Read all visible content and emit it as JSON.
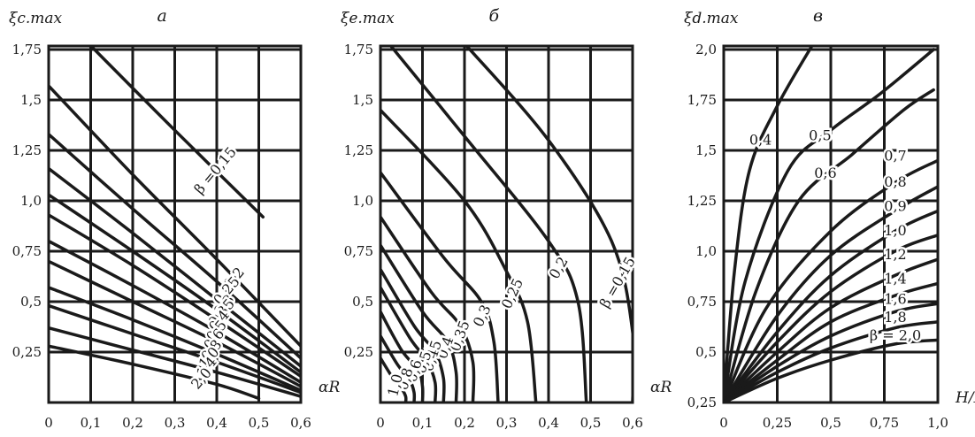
{
  "chart_data": [
    {
      "type": "line",
      "panel_letter": "а",
      "ylabel": "ξc.max",
      "xlabel": "αR",
      "xlim": [
        0,
        0.6
      ],
      "ylim": [
        0,
        1.75
      ],
      "xticks": [
        "0",
        "0,1",
        "0,2",
        "0,3",
        "0,4",
        "0,5",
        "0,6"
      ],
      "yticks": [
        "0,25",
        "0,5",
        "0,75",
        "1,0",
        "1,25",
        "1,5",
        "1,75"
      ],
      "grid": true,
      "series": [
        {
          "label": "β =0,15",
          "x": [
            0.09,
            0.3,
            0.51
          ],
          "y": [
            1.79,
            1.35,
            0.92
          ]
        },
        {
          "label": "0,2",
          "x": [
            0.0,
            0.2,
            0.4,
            0.6
          ],
          "y": [
            1.57,
            1.13,
            0.71,
            0.28
          ]
        },
        {
          "label": "0,25",
          "x": [
            0.0,
            0.2,
            0.4,
            0.6
          ],
          "y": [
            1.33,
            0.96,
            0.6,
            0.22
          ]
        },
        {
          "label": "0,3",
          "x": [
            0.0,
            0.2,
            0.4,
            0.6
          ],
          "y": [
            1.16,
            0.84,
            0.51,
            0.18
          ]
        },
        {
          "label": "0,35",
          "x": [
            0.0,
            0.2,
            0.4,
            0.6
          ],
          "y": [
            1.03,
            0.75,
            0.46,
            0.15
          ]
        },
        {
          "label": "0,4",
          "x": [
            0.0,
            0.2,
            0.4,
            0.6
          ],
          "y": [
            0.93,
            0.68,
            0.41,
            0.13
          ]
        },
        {
          "label": "0,5",
          "x": [
            0.0,
            0.2,
            0.4,
            0.6
          ],
          "y": [
            0.8,
            0.58,
            0.35,
            0.1
          ]
        },
        {
          "label": "0,6",
          "x": [
            0.0,
            0.2,
            0.4,
            0.6
          ],
          "y": [
            0.7,
            0.5,
            0.3,
            0.08
          ]
        },
        {
          "label": "0,8",
          "x": [
            0.0,
            0.2,
            0.4,
            0.6
          ],
          "y": [
            0.57,
            0.41,
            0.24,
            0.06
          ]
        },
        {
          "label": "1,0",
          "x": [
            0.0,
            0.2,
            0.4,
            0.6
          ],
          "y": [
            0.48,
            0.34,
            0.2,
            0.05
          ]
        },
        {
          "label": "1,4",
          "x": [
            0.0,
            0.2,
            0.4,
            0.6
          ],
          "y": [
            0.37,
            0.26,
            0.15,
            0.03
          ]
        },
        {
          "label": "2,0",
          "x": [
            0.0,
            0.2,
            0.4,
            0.5
          ],
          "y": [
            0.28,
            0.19,
            0.09,
            0.02
          ]
        }
      ]
    },
    {
      "type": "line",
      "panel_letter": "б",
      "ylabel": "ξe.max",
      "xlabel": "αR",
      "xlim": [
        0,
        0.6
      ],
      "ylim": [
        0,
        1.75
      ],
      "xticks": [
        "0",
        "0,1",
        "0,2",
        "0,3",
        "0,4",
        "0,5",
        "0,6"
      ],
      "yticks": [
        "0,25",
        "0,5",
        "0,75",
        "1,0",
        "1,25",
        "1,5",
        "1,75"
      ],
      "grid": true,
      "series": [
        {
          "label": "β =0,15",
          "x": [
            0.2,
            0.4,
            0.55,
            0.6,
            0.6
          ],
          "y": [
            1.78,
            1.3,
            0.8,
            0.35,
            0.0
          ]
        },
        {
          "label": "0,2",
          "x": [
            0.02,
            0.2,
            0.4,
            0.47,
            0.49
          ],
          "y": [
            1.78,
            1.32,
            0.8,
            0.5,
            0.0
          ]
        },
        {
          "label": "0,25",
          "x": [
            0.0,
            0.2,
            0.3,
            0.35,
            0.37
          ],
          "y": [
            1.45,
            1.0,
            0.65,
            0.4,
            0.0
          ]
        },
        {
          "label": "0,3",
          "x": [
            0.0,
            0.15,
            0.24,
            0.27,
            0.28
          ],
          "y": [
            1.14,
            0.72,
            0.5,
            0.3,
            0.0
          ]
        },
        {
          "label": "0,35",
          "x": [
            0.0,
            0.12,
            0.19,
            0.22,
            0.22
          ],
          "y": [
            0.92,
            0.55,
            0.38,
            0.2,
            0.0
          ]
        },
        {
          "label": "0,4",
          "x": [
            0.0,
            0.1,
            0.16,
            0.18,
            0.18
          ],
          "y": [
            0.78,
            0.45,
            0.3,
            0.15,
            0.0
          ]
        },
        {
          "label": "0,45",
          "x": [
            0.0,
            0.08,
            0.13,
            0.15,
            0.15
          ],
          "y": [
            0.66,
            0.38,
            0.25,
            0.12,
            0.0
          ]
        },
        {
          "label": "0,5",
          "x": [
            0.0,
            0.07,
            0.11,
            0.13,
            0.13
          ],
          "y": [
            0.57,
            0.32,
            0.21,
            0.1,
            0.0
          ]
        },
        {
          "label": "0,6",
          "x": [
            0.0,
            0.05,
            0.09,
            0.1,
            0.1
          ],
          "y": [
            0.45,
            0.26,
            0.16,
            0.08,
            0.0
          ]
        },
        {
          "label": "0,8",
          "x": [
            0.0,
            0.04,
            0.07,
            0.08,
            0.08
          ],
          "y": [
            0.33,
            0.19,
            0.11,
            0.05,
            0.0
          ]
        },
        {
          "label": "1,0",
          "x": [
            0.0,
            0.03,
            0.05,
            0.06,
            0.06
          ],
          "y": [
            0.22,
            0.12,
            0.07,
            0.03,
            0.0
          ]
        }
      ]
    },
    {
      "type": "line",
      "panel_letter": "в",
      "ylabel": "ξd.max",
      "xlabel": "H/B",
      "xlim": [
        0,
        1.0
      ],
      "ylim": [
        0.25,
        2.0
      ],
      "xticks": [
        "0",
        "0,25",
        "0,5",
        "0,75",
        "1,0"
      ],
      "yticks": [
        "0,25",
        "0,5",
        "0,75",
        "1,0",
        "1,25",
        "1,5",
        "1,75",
        "2,0"
      ],
      "grid": true,
      "series": [
        {
          "label": "0,4",
          "x": [
            0.0,
            0.05,
            0.12,
            0.25,
            0.43
          ],
          "y": [
            0.25,
            0.9,
            1.4,
            1.72,
            2.05
          ]
        },
        {
          "label": "0,5",
          "x": [
            0.0,
            0.1,
            0.3,
            0.5,
            0.73,
            0.98
          ],
          "y": [
            0.25,
            0.85,
            1.4,
            1.6,
            1.78,
            2.0
          ]
        },
        {
          "label": "0,6",
          "x": [
            0.0,
            0.15,
            0.35,
            0.6,
            0.84,
            0.98
          ],
          "y": [
            0.25,
            0.8,
            1.25,
            1.48,
            1.7,
            1.8
          ]
        },
        {
          "label": "0,7",
          "x": [
            0.0,
            0.2,
            0.5,
            0.8,
            1.0
          ],
          "y": [
            0.25,
            0.72,
            1.1,
            1.34,
            1.45
          ]
        },
        {
          "label": "0,8",
          "x": [
            0.0,
            0.25,
            0.5,
            0.8,
            1.0
          ],
          "y": [
            0.25,
            0.68,
            0.98,
            1.2,
            1.32
          ]
        },
        {
          "label": "0,9",
          "x": [
            0.0,
            0.25,
            0.5,
            0.8,
            1.0
          ],
          "y": [
            0.25,
            0.6,
            0.88,
            1.1,
            1.2
          ]
        },
        {
          "label": "1,0",
          "x": [
            0.0,
            0.25,
            0.5,
            0.8,
            1.0
          ],
          "y": [
            0.25,
            0.55,
            0.8,
            1.0,
            1.08
          ]
        },
        {
          "label": "1,2",
          "x": [
            0.0,
            0.25,
            0.5,
            0.8,
            1.0
          ],
          "y": [
            0.25,
            0.5,
            0.72,
            0.88,
            0.96
          ]
        },
        {
          "label": "1,4",
          "x": [
            0.0,
            0.25,
            0.5,
            0.8,
            1.0
          ],
          "y": [
            0.25,
            0.46,
            0.65,
            0.78,
            0.84
          ]
        },
        {
          "label": "1,6",
          "x": [
            0.0,
            0.25,
            0.5,
            0.8,
            1.0
          ],
          "y": [
            0.25,
            0.43,
            0.58,
            0.7,
            0.74
          ]
        },
        {
          "label": "1,8",
          "x": [
            0.0,
            0.25,
            0.5,
            0.8,
            1.0
          ],
          "y": [
            0.25,
            0.4,
            0.52,
            0.62,
            0.65
          ]
        },
        {
          "label": "β = 2,0",
          "x": [
            0.0,
            0.25,
            0.5,
            0.8,
            1.0
          ],
          "y": [
            0.25,
            0.37,
            0.46,
            0.54,
            0.56
          ]
        }
      ]
    }
  ]
}
